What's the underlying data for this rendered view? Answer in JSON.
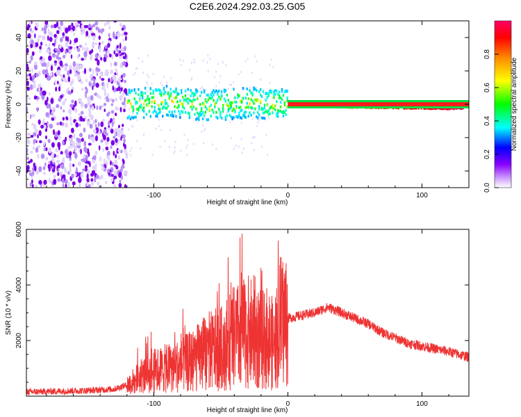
{
  "title": "C2E6.2024.292.03.25.G05",
  "chart_data": [
    {
      "type": "heatmap",
      "xlabel": "Height of straight line (km)",
      "ylabel": "Frequency (Hz)",
      "xlim": [
        -195,
        135
      ],
      "ylim": [
        -50,
        50
      ],
      "xticks": [
        -100,
        0,
        100
      ],
      "yticks": [
        -40,
        -20,
        0,
        20,
        40
      ],
      "colorbar": {
        "label": "Normalized spectral amplitude",
        "range": [
          0,
          1
        ],
        "ticks": [
          "0.0",
          "0.2",
          "0.4",
          "0.6",
          "0.8"
        ],
        "colormap": [
          "#ffffff",
          "#8800ff",
          "#0000ff",
          "#00ffff",
          "#00ff00",
          "#ffff00",
          "#ff8800",
          "#ff0000",
          "#ff0066"
        ]
      },
      "description_values": {
        "noise_region_x": [
          -195,
          -120
        ],
        "signal_line_frequency_hz": 0,
        "signal_center_frequency_hz": [
          {
            "x": -120,
            "y": 0
          },
          {
            "x": -90,
            "y": 2
          },
          {
            "x": -60,
            "y": -1
          },
          {
            "x": -30,
            "y": 1
          },
          {
            "x": 0,
            "y": 0
          },
          {
            "x": 50,
            "y": -1
          },
          {
            "x": 130,
            "y": -2
          }
        ]
      }
    },
    {
      "type": "line",
      "xlabel": "Height of straight line (km)",
      "ylabel": "SNR (10 * v/v)",
      "xlim": [
        -195,
        135
      ],
      "ylim": [
        0,
        6000
      ],
      "xticks": [
        -100,
        0,
        100
      ],
      "yticks": [
        2000,
        4000,
        6000
      ],
      "color": "#ee3333",
      "series": [
        {
          "x": [
            -195,
            -170,
            -150,
            -130,
            -120,
            -110,
            -100,
            -90,
            -80,
            -70,
            -60,
            -50,
            -45,
            -40,
            -35,
            -30,
            -25,
            -20,
            -15,
            -10,
            -5,
            0,
            10,
            20,
            30,
            35,
            40,
            50,
            60,
            70,
            80,
            90,
            100,
            110,
            120,
            135
          ],
          "y": [
            150,
            180,
            200,
            250,
            400,
            700,
            900,
            1000,
            1100,
            1300,
            1600,
            1700,
            1900,
            2100,
            2200,
            2300,
            2200,
            2000,
            2100,
            1800,
            2700,
            2800,
            2900,
            3000,
            3200,
            3100,
            3000,
            2800,
            2600,
            2300,
            2100,
            1900,
            1800,
            1700,
            1600,
            1400
          ]
        }
      ]
    }
  ]
}
